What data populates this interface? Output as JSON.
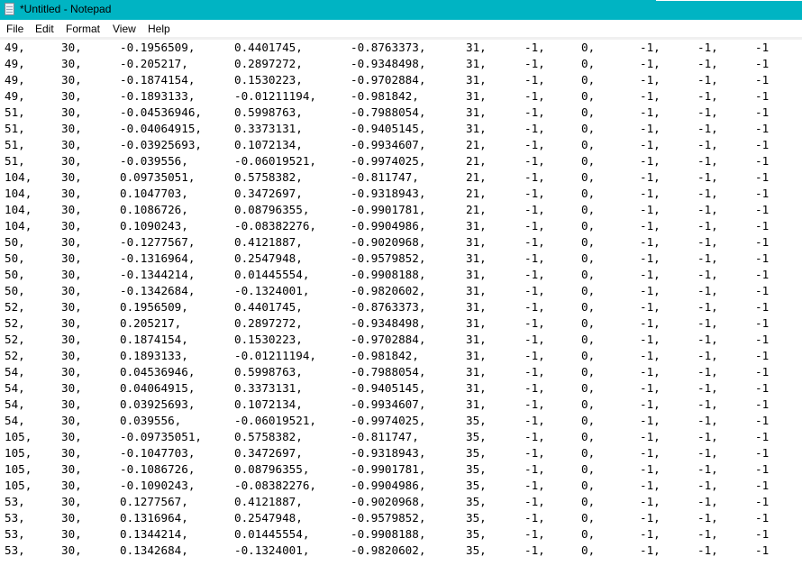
{
  "window": {
    "title": "*Untitled - Notepad",
    "icon": "notepad-icon",
    "titlebar_color": "#00b4c3"
  },
  "menu": [
    "File",
    "Edit",
    "Format",
    "View",
    "Help"
  ],
  "rows": [
    [
      "49,",
      "30,",
      "-0.1956509,",
      "0.4401745,",
      "-0.8763373,",
      "31,",
      "-1,",
      "0,",
      "-1,",
      "-1,",
      "-1"
    ],
    [
      "49,",
      "30,",
      "-0.205217,",
      "0.2897272,",
      "-0.9348498,",
      "31,",
      "-1,",
      "0,",
      "-1,",
      "-1,",
      "-1"
    ],
    [
      "49,",
      "30,",
      "-0.1874154,",
      "0.1530223,",
      "-0.9702884,",
      "31,",
      "-1,",
      "0,",
      "-1,",
      "-1,",
      "-1"
    ],
    [
      "49,",
      "30,",
      "-0.1893133,",
      "-0.01211194,",
      "-0.981842,",
      "31,",
      "-1,",
      "0,",
      "-1,",
      "-1,",
      "-1"
    ],
    [
      "51,",
      "30,",
      "-0.04536946,",
      "0.5998763,",
      "-0.7988054,",
      "31,",
      "-1,",
      "0,",
      "-1,",
      "-1,",
      "-1"
    ],
    [
      "51,",
      "30,",
      "-0.04064915,",
      "0.3373131,",
      "-0.9405145,",
      "31,",
      "-1,",
      "0,",
      "-1,",
      "-1,",
      "-1"
    ],
    [
      "51,",
      "30,",
      "-0.03925693,",
      "0.1072134,",
      "-0.9934607,",
      "21,",
      "-1,",
      "0,",
      "-1,",
      "-1,",
      "-1"
    ],
    [
      "51,",
      "30,",
      "-0.039556,",
      "-0.06019521,",
      "-0.9974025,",
      "21,",
      "-1,",
      "0,",
      "-1,",
      "-1,",
      "-1"
    ],
    [
      "104,",
      "30,",
      "0.09735051,",
      "0.5758382,",
      "-0.811747,",
      "21,",
      "-1,",
      "0,",
      "-1,",
      "-1,",
      "-1"
    ],
    [
      "104,",
      "30,",
      "0.1047703,",
      "0.3472697,",
      "-0.9318943,",
      "21,",
      "-1,",
      "0,",
      "-1,",
      "-1,",
      "-1"
    ],
    [
      "104,",
      "30,",
      "0.1086726,",
      "0.08796355,",
      "-0.9901781,",
      "21,",
      "-1,",
      "0,",
      "-1,",
      "-1,",
      "-1"
    ],
    [
      "104,",
      "30,",
      "0.1090243,",
      "-0.08382276,",
      "-0.9904986,",
      "31,",
      "-1,",
      "0,",
      "-1,",
      "-1,",
      "-1"
    ],
    [
      "50,",
      "30,",
      "-0.1277567,",
      "0.4121887,",
      "-0.9020968,",
      "31,",
      "-1,",
      "0,",
      "-1,",
      "-1,",
      "-1"
    ],
    [
      "50,",
      "30,",
      "-0.1316964,",
      "0.2547948,",
      "-0.9579852,",
      "31,",
      "-1,",
      "0,",
      "-1,",
      "-1,",
      "-1"
    ],
    [
      "50,",
      "30,",
      "-0.1344214,",
      "0.01445554,",
      "-0.9908188,",
      "31,",
      "-1,",
      "0,",
      "-1,",
      "-1,",
      "-1"
    ],
    [
      "50,",
      "30,",
      "-0.1342684,",
      "-0.1324001,",
      "-0.9820602,",
      "31,",
      "-1,",
      "0,",
      "-1,",
      "-1,",
      "-1"
    ],
    [
      "52,",
      "30,",
      "0.1956509,",
      "0.4401745,",
      "-0.8763373,",
      "31,",
      "-1,",
      "0,",
      "-1,",
      "-1,",
      "-1"
    ],
    [
      "52,",
      "30,",
      "0.205217,",
      "0.2897272,",
      "-0.9348498,",
      "31,",
      "-1,",
      "0,",
      "-1,",
      "-1,",
      "-1"
    ],
    [
      "52,",
      "30,",
      "0.1874154,",
      "0.1530223,",
      "-0.9702884,",
      "31,",
      "-1,",
      "0,",
      "-1,",
      "-1,",
      "-1"
    ],
    [
      "52,",
      "30,",
      "0.1893133,",
      "-0.01211194,",
      "-0.981842,",
      "31,",
      "-1,",
      "0,",
      "-1,",
      "-1,",
      "-1"
    ],
    [
      "54,",
      "30,",
      "0.04536946,",
      "0.5998763,",
      "-0.7988054,",
      "31,",
      "-1,",
      "0,",
      "-1,",
      "-1,",
      "-1"
    ],
    [
      "54,",
      "30,",
      "0.04064915,",
      "0.3373131,",
      "-0.9405145,",
      "31,",
      "-1,",
      "0,",
      "-1,",
      "-1,",
      "-1"
    ],
    [
      "54,",
      "30,",
      "0.03925693,",
      "0.1072134,",
      "-0.9934607,",
      "31,",
      "-1,",
      "0,",
      "-1,",
      "-1,",
      "-1"
    ],
    [
      "54,",
      "30,",
      "0.039556,",
      "-0.06019521,",
      "-0.9974025,",
      "35,",
      "-1,",
      "0,",
      "-1,",
      "-1,",
      "-1"
    ],
    [
      "105,",
      "30,",
      "-0.09735051,",
      "0.5758382,",
      "-0.811747,",
      "35,",
      "-1,",
      "0,",
      "-1,",
      "-1,",
      "-1"
    ],
    [
      "105,",
      "30,",
      "-0.1047703,",
      "0.3472697,",
      "-0.9318943,",
      "35,",
      "-1,",
      "0,",
      "-1,",
      "-1,",
      "-1"
    ],
    [
      "105,",
      "30,",
      "-0.1086726,",
      "0.08796355,",
      "-0.9901781,",
      "35,",
      "-1,",
      "0,",
      "-1,",
      "-1,",
      "-1"
    ],
    [
      "105,",
      "30,",
      "-0.1090243,",
      "-0.08382276,",
      "-0.9904986,",
      "35,",
      "-1,",
      "0,",
      "-1,",
      "-1,",
      "-1"
    ],
    [
      "53,",
      "30,",
      "0.1277567,",
      "0.4121887,",
      "-0.9020968,",
      "35,",
      "-1,",
      "0,",
      "-1,",
      "-1,",
      "-1"
    ],
    [
      "53,",
      "30,",
      "0.1316964,",
      "0.2547948,",
      "-0.9579852,",
      "35,",
      "-1,",
      "0,",
      "-1,",
      "-1,",
      "-1"
    ],
    [
      "53,",
      "30,",
      "0.1344214,",
      "0.01445554,",
      "-0.9908188,",
      "35,",
      "-1,",
      "0,",
      "-1,",
      "-1,",
      "-1"
    ],
    [
      "53,",
      "30,",
      "0.1342684,",
      "-0.1324001,",
      "-0.9820602,",
      "35,",
      "-1,",
      "0,",
      "-1,",
      "-1,",
      "-1"
    ]
  ]
}
